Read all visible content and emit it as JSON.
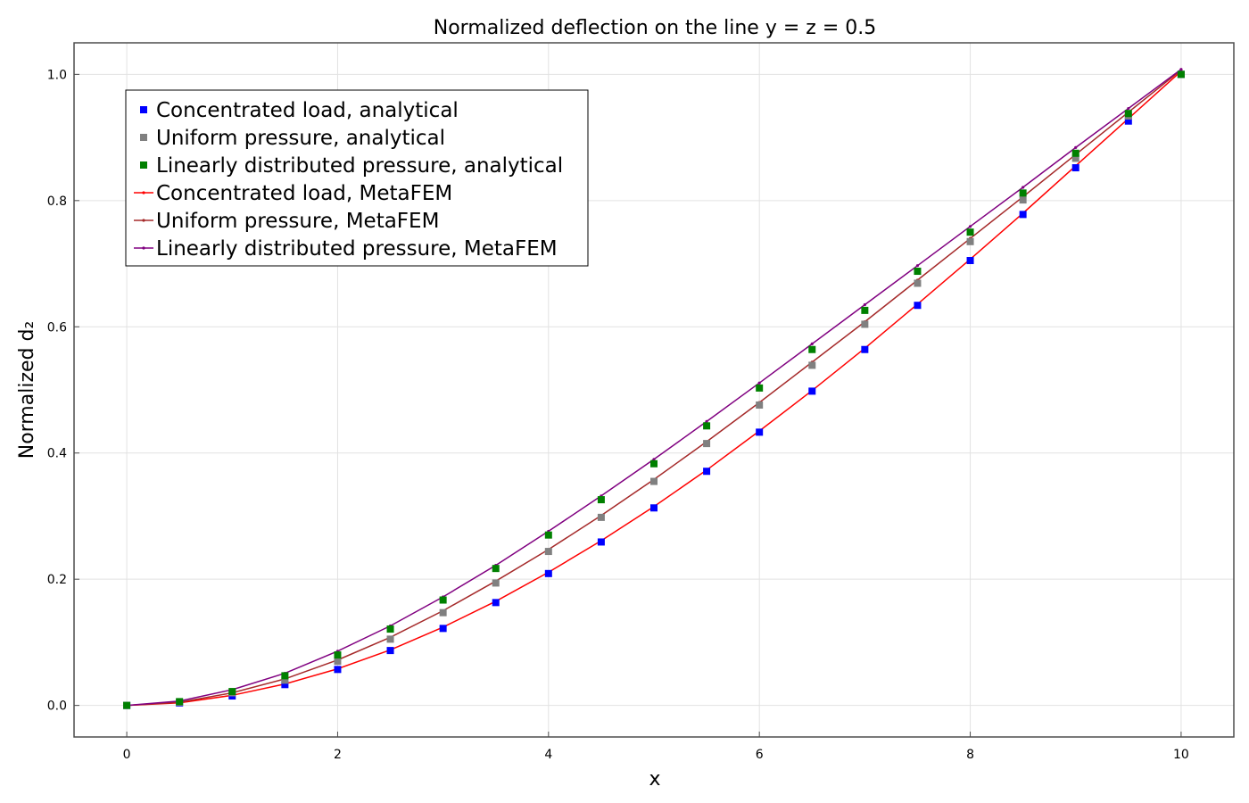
{
  "chart_data": {
    "type": "line",
    "title": "Normalized deflection on the line y = z = 0.5",
    "xlabel": "x",
    "ylabel": "Normalized d₂",
    "xlim": [
      -0.5,
      10.5
    ],
    "ylim": [
      -0.05,
      1.05
    ],
    "xticks": [
      "0",
      "2",
      "4",
      "6",
      "8",
      "10"
    ],
    "yticks": [
      "0.0",
      "0.2",
      "0.4",
      "0.6",
      "0.8",
      "1.0"
    ],
    "grid": true,
    "legend_position": "top-left",
    "x": [
      0,
      0.5,
      1,
      1.5,
      2,
      2.5,
      3,
      3.5,
      4,
      4.5,
      5,
      5.5,
      6,
      6.5,
      7,
      7.5,
      8,
      8.5,
      9,
      9.5,
      10
    ],
    "series": [
      {
        "name": "Concentrated load, analytical",
        "kind": "marker",
        "color": "#0000ff",
        "values": [
          0,
          0.004,
          0.015,
          0.033,
          0.057,
          0.087,
          0.122,
          0.163,
          0.209,
          0.259,
          0.313,
          0.371,
          0.433,
          0.498,
          0.564,
          0.634,
          0.705,
          0.778,
          0.852,
          0.926,
          1.0
        ]
      },
      {
        "name": "Uniform pressure, analytical",
        "kind": "marker",
        "color": "#808080",
        "values": [
          0,
          0.005,
          0.02,
          0.04,
          0.07,
          0.105,
          0.147,
          0.194,
          0.244,
          0.298,
          0.355,
          0.415,
          0.476,
          0.539,
          0.604,
          0.669,
          0.735,
          0.801,
          0.867,
          0.934,
          1.0
        ]
      },
      {
        "name": "Linearly distributed pressure, analytical",
        "kind": "marker",
        "color": "#008000",
        "values": [
          0,
          0.006,
          0.022,
          0.047,
          0.08,
          0.121,
          0.167,
          0.217,
          0.27,
          0.326,
          0.383,
          0.443,
          0.503,
          0.564,
          0.626,
          0.688,
          0.75,
          0.812,
          0.875,
          0.938,
          1.0
        ]
      },
      {
        "name": "Concentrated load, MetaFEM",
        "kind": "line",
        "color": "#ff0000",
        "values": [
          0,
          0.004,
          0.016,
          0.034,
          0.058,
          0.088,
          0.124,
          0.165,
          0.211,
          0.261,
          0.315,
          0.373,
          0.435,
          0.499,
          0.566,
          0.636,
          0.707,
          0.78,
          0.855,
          0.93,
          1.005
        ]
      },
      {
        "name": "Uniform pressure, MetaFEM",
        "kind": "line",
        "color": "#a52a2a",
        "values": [
          0,
          0.005,
          0.02,
          0.042,
          0.072,
          0.108,
          0.15,
          0.197,
          0.247,
          0.301,
          0.358,
          0.418,
          0.48,
          0.544,
          0.608,
          0.674,
          0.74,
          0.806,
          0.873,
          0.94,
          1.007
        ]
      },
      {
        "name": "Linearly distributed pressure, MetaFEM",
        "kind": "line",
        "color": "#800080",
        "values": [
          0,
          0.007,
          0.025,
          0.051,
          0.086,
          0.126,
          0.172,
          0.222,
          0.276,
          0.332,
          0.39,
          0.45,
          0.511,
          0.573,
          0.635,
          0.697,
          0.759,
          0.821,
          0.884,
          0.946,
          1.008
        ]
      }
    ]
  }
}
